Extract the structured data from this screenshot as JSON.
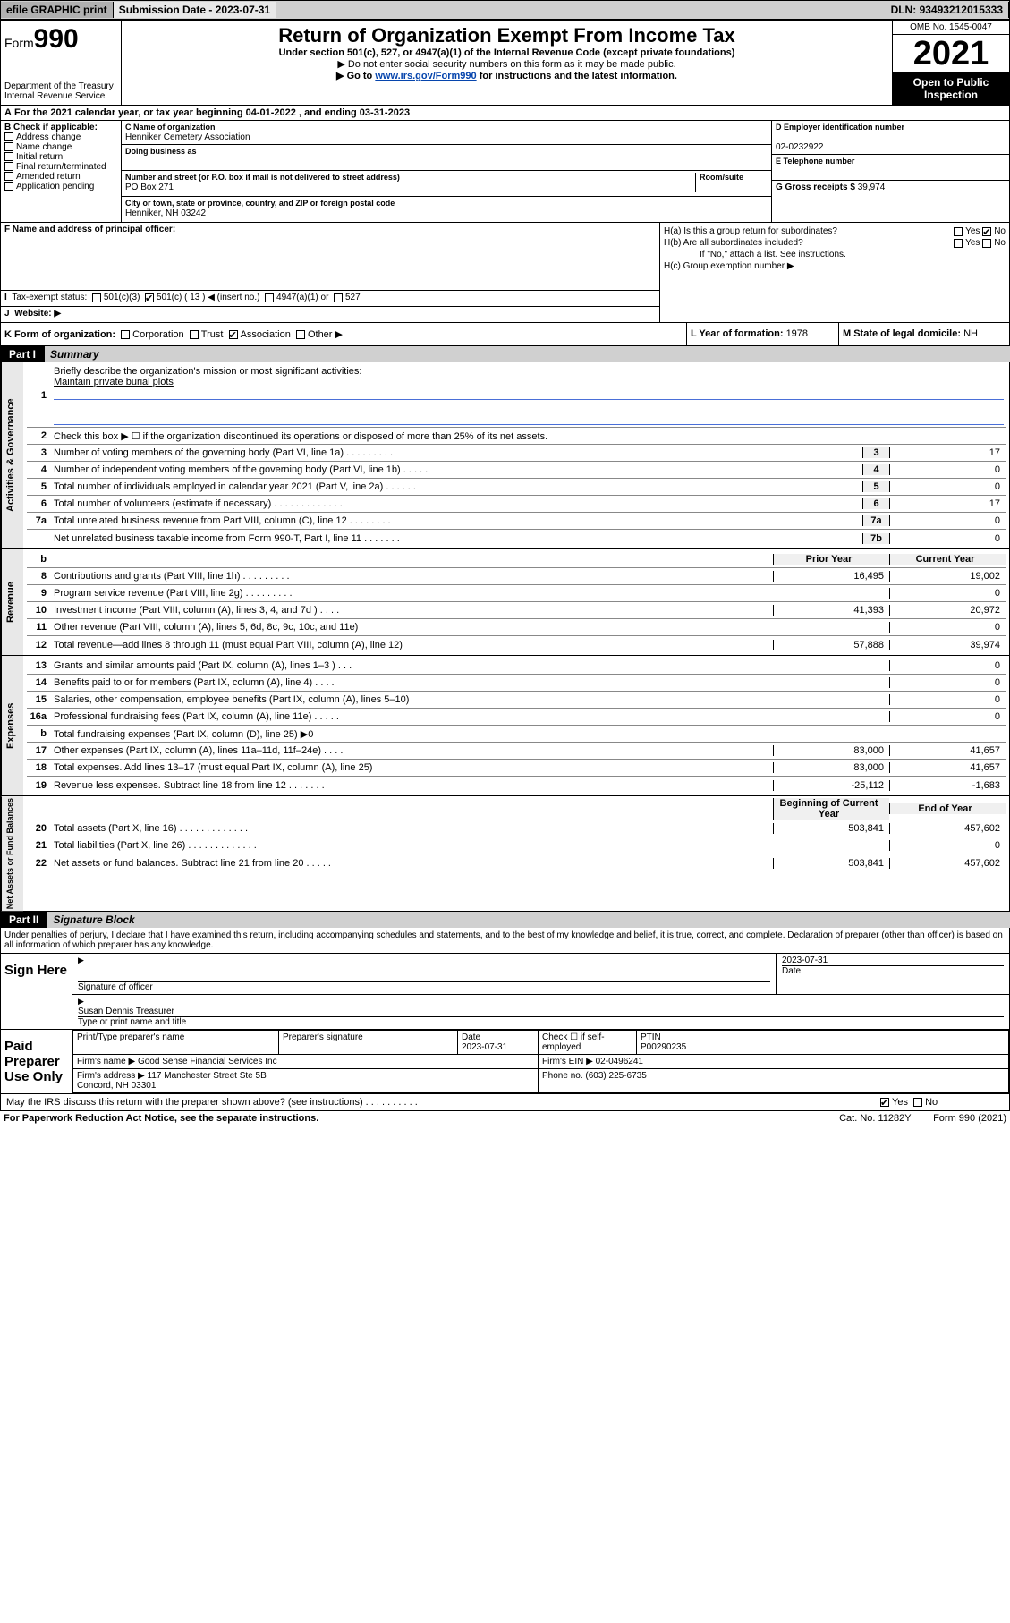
{
  "topbar": {
    "efile": "efile GRAPHIC print",
    "submission_label": "Submission Date - ",
    "submission_date": "2023-07-31",
    "dln_label": "DLN: ",
    "dln": "93493212015333"
  },
  "header": {
    "form_prefix": "Form",
    "form_number": "990",
    "dept": "Department of the Treasury\nInternal Revenue Service",
    "title": "Return of Organization Exempt From Income Tax",
    "subtitle": "Under section 501(c), 527, or 4947(a)(1) of the Internal Revenue Code (except private foundations)",
    "inst1": "▶ Do not enter social security numbers on this form as it may be made public.",
    "inst2_pre": "▶ Go to ",
    "inst2_link": "www.irs.gov/Form990",
    "inst2_post": " for instructions and the latest information.",
    "omb": "OMB No. 1545-0047",
    "year": "2021",
    "open": "Open to Public Inspection"
  },
  "A": {
    "text": "For the 2021 calendar year, or tax year beginning ",
    "begin": "04-01-2022",
    "mid": " , and ending ",
    "end": "03-31-2023"
  },
  "B": {
    "label": "B Check if applicable:",
    "items": [
      "Address change",
      "Name change",
      "Initial return",
      "Final return/terminated",
      "Amended return",
      "Application pending"
    ]
  },
  "C": {
    "name_lbl": "C Name of organization",
    "name": "Henniker Cemetery Association",
    "dba_lbl": "Doing business as",
    "dba": "",
    "street_lbl": "Number and street (or P.O. box if mail is not delivered to street address)",
    "room_lbl": "Room/suite",
    "street": "PO Box 271",
    "city_lbl": "City or town, state or province, country, and ZIP or foreign postal code",
    "city": "Henniker, NH  03242"
  },
  "D": {
    "lbl": "D Employer identification number",
    "val": "02-0232922"
  },
  "E": {
    "lbl": "E Telephone number",
    "val": ""
  },
  "G": {
    "lbl": "G Gross receipts $",
    "val": "39,974"
  },
  "F": {
    "lbl": "F  Name and address of principal officer:",
    "val": ""
  },
  "H": {
    "a": "H(a)  Is this a group return for subordinates?",
    "b": "H(b)  Are all subordinates included?",
    "b_note": "If \"No,\" attach a list. See instructions.",
    "c": "H(c)  Group exemption number ▶",
    "yes": "Yes",
    "no": "No"
  },
  "I": {
    "lbl": "Tax-exempt status:",
    "opts": [
      "501(c)(3)",
      "501(c) ( 13 ) ◀ (insert no.)",
      "4947(a)(1) or",
      "527"
    ]
  },
  "J": {
    "lbl": "Website: ▶",
    "val": ""
  },
  "K": {
    "lbl": "K Form of organization:",
    "opts": [
      "Corporation",
      "Trust",
      "Association",
      "Other ▶"
    ]
  },
  "L": {
    "lbl": "L Year of formation: ",
    "val": "1978"
  },
  "M": {
    "lbl": "M State of legal domicile: ",
    "val": "NH"
  },
  "partI": {
    "num": "Part I",
    "title": "Summary"
  },
  "summary": {
    "l1_lbl": "Briefly describe the organization's mission or most significant activities:",
    "l1_val": "Maintain private burial plots",
    "l2": "Check this box ▶ ☐  if the organization discontinued its operations or disposed of more than 25% of its net assets.",
    "governance": [
      {
        "n": "3",
        "t": "Number of voting members of the governing body (Part VI, line 1a)   .    .    .    .    .    .    .    .    .",
        "k": "3",
        "v": "17"
      },
      {
        "n": "4",
        "t": "Number of independent voting members of the governing body (Part VI, line 1b)   .    .    .    .    .",
        "k": "4",
        "v": "0"
      },
      {
        "n": "5",
        "t": "Total number of individuals employed in calendar year 2021 (Part V, line 2a)   .    .    .    .    .    .",
        "k": "5",
        "v": "0"
      },
      {
        "n": "6",
        "t": "Total number of volunteers (estimate if necessary)   .    .    .    .    .    .    .    .    .    .    .    .    .",
        "k": "6",
        "v": "17"
      },
      {
        "n": "7a",
        "t": "Total unrelated business revenue from Part VIII, column (C), line 12   .    .    .    .    .    .    .    .",
        "k": "7a",
        "v": "0"
      },
      {
        "n": "",
        "t": "Net unrelated business taxable income from Form 990-T, Part I, line 11   .    .    .    .    .    .    .",
        "k": "7b",
        "v": "0"
      }
    ],
    "col_prior": "Prior Year",
    "col_curr": "Current Year",
    "revenue": [
      {
        "n": "8",
        "t": "Contributions and grants (Part VIII, line 1h)   .    .    .    .    .    .    .    .    .",
        "p": "16,495",
        "c": "19,002"
      },
      {
        "n": "9",
        "t": "Program service revenue (Part VIII, line 2g)   .    .    .    .    .    .    .    .    .",
        "p": "",
        "c": "0"
      },
      {
        "n": "10",
        "t": "Investment income (Part VIII, column (A), lines 3, 4, and 7d )   .    .    .    .",
        "p": "41,393",
        "c": "20,972"
      },
      {
        "n": "11",
        "t": "Other revenue (Part VIII, column (A), lines 5, 6d, 8c, 9c, 10c, and 11e)",
        "p": "",
        "c": "0"
      },
      {
        "n": "12",
        "t": "Total revenue—add lines 8 through 11 (must equal Part VIII, column (A), line 12)",
        "p": "57,888",
        "c": "39,974"
      }
    ],
    "expenses": [
      {
        "n": "13",
        "t": "Grants and similar amounts paid (Part IX, column (A), lines 1–3 )   .    .    .",
        "p": "",
        "c": "0"
      },
      {
        "n": "14",
        "t": "Benefits paid to or for members (Part IX, column (A), line 4)   .    .    .    .",
        "p": "",
        "c": "0"
      },
      {
        "n": "15",
        "t": "Salaries, other compensation, employee benefits (Part IX, column (A), lines 5–10)",
        "p": "",
        "c": "0"
      },
      {
        "n": "16a",
        "t": "Professional fundraising fees (Part IX, column (A), line 11e)   .    .    .    .    .",
        "p": "",
        "c": "0"
      },
      {
        "n": "b",
        "t": "Total fundraising expenses (Part IX, column (D), line 25) ▶0",
        "p": "grey",
        "c": "grey"
      },
      {
        "n": "17",
        "t": "Other expenses (Part IX, column (A), lines 11a–11d, 11f–24e)   .    .    .    .",
        "p": "83,000",
        "c": "41,657"
      },
      {
        "n": "18",
        "t": "Total expenses. Add lines 13–17 (must equal Part IX, column (A), line 25)",
        "p": "83,000",
        "c": "41,657"
      },
      {
        "n": "19",
        "t": "Revenue less expenses. Subtract line 18 from line 12   .    .    .    .    .    .    .",
        "p": "-25,112",
        "c": "-1,683"
      }
    ],
    "col_beg": "Beginning of Current Year",
    "col_end": "End of Year",
    "netassets": [
      {
        "n": "20",
        "t": "Total assets (Part X, line 16)   .    .    .    .    .    .    .    .    .    .    .    .    .",
        "p": "503,841",
        "c": "457,602"
      },
      {
        "n": "21",
        "t": "Total liabilities (Part X, line 26)   .    .    .    .    .    .    .    .    .    .    .    .    .",
        "p": "",
        "c": "0"
      },
      {
        "n": "22",
        "t": "Net assets or fund balances. Subtract line 21 from line 20   .    .    .    .    .",
        "p": "503,841",
        "c": "457,602"
      }
    ],
    "tabs": {
      "gov": "Activities & Governance",
      "rev": "Revenue",
      "exp": "Expenses",
      "net": "Net Assets or Fund Balances"
    }
  },
  "partII": {
    "num": "Part II",
    "title": "Signature Block"
  },
  "penalties": "Under penalties of perjury, I declare that I have examined this return, including accompanying schedules and statements, and to the best of my knowledge and belief, it is true, correct, and complete. Declaration of preparer (other than officer) is based on all information of which preparer has any knowledge.",
  "sign": {
    "here": "Sign Here",
    "sig_officer": "Signature of officer",
    "date": "Date",
    "date_val": "2023-07-31",
    "name": "Susan Dennis Treasurer",
    "name_lbl": "Type or print name and title"
  },
  "paid": {
    "lbl": "Paid Preparer Use Only",
    "h1": "Print/Type preparer's name",
    "h2": "Preparer's signature",
    "h3": "Date",
    "h3v": "2023-07-31",
    "h4": "Check ☐ if self-employed",
    "h5": "PTIN",
    "h5v": "P00290235",
    "firm_lbl": "Firm's name    ▶",
    "firm": "Good Sense Financial Services Inc",
    "ein_lbl": "Firm's EIN ▶",
    "ein": "02-0496241",
    "addr_lbl": "Firm's address ▶",
    "addr": "117 Manchester Street Ste 5B\nConcord, NH  03301",
    "phone_lbl": "Phone no.",
    "phone": "(603) 225-6735"
  },
  "may_irs": "May the IRS discuss this return with the preparer shown above? (see instructions)   .    .    .    .    .    .    .    .    .    .",
  "footer": {
    "left": "For Paperwork Reduction Act Notice, see the separate instructions.",
    "mid": "Cat. No. 11282Y",
    "right": "Form 990 (2021)"
  }
}
